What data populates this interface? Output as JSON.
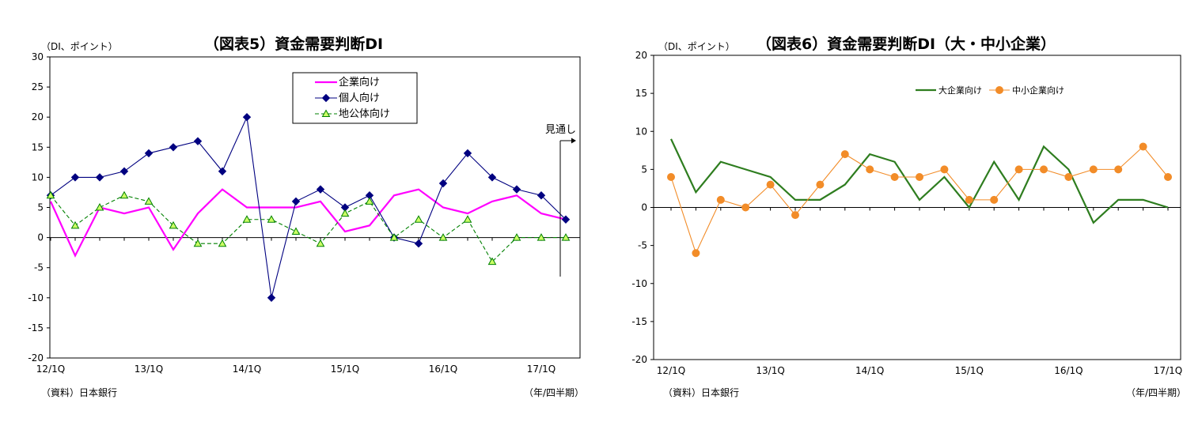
{
  "chart_data": [
    {
      "type": "line",
      "title": "（図表5）資金需要判断DI",
      "ylabel": "（DI、ポイント）",
      "source": "（資料）日本銀行",
      "period_label": "（年/四半期）",
      "annotation": "見通し",
      "ylim": [
        -20,
        30
      ],
      "yticks": [
        -20,
        -15,
        -10,
        -5,
        0,
        5,
        10,
        15,
        20,
        25,
        30
      ],
      "x_tick_labels": [
        "12/1Q",
        "13/1Q",
        "14/1Q",
        "15/1Q",
        "16/1Q",
        "17/1Q"
      ],
      "n_points": 22,
      "legend_position": "top-center",
      "series": [
        {
          "name": "企業向け",
          "color": "#ff00ff",
          "style": "solid",
          "marker": "none",
          "values": [
            6,
            -3,
            5,
            4,
            5,
            -2,
            4,
            8,
            5,
            5,
            5,
            6,
            1,
            2,
            7,
            8,
            5,
            4,
            6,
            7,
            4,
            3
          ]
        },
        {
          "name": "個人向け",
          "color": "#000080",
          "style": "solid",
          "marker": "diamond",
          "values": [
            7,
            10,
            10,
            11,
            14,
            15,
            16,
            11,
            20,
            -10,
            6,
            8,
            5,
            7,
            0,
            -1,
            9,
            14,
            10,
            8,
            7,
            3
          ]
        },
        {
          "name": "地公体向け",
          "color": "#008000",
          "style": "dashed",
          "marker": "triangle",
          "values": [
            7,
            2,
            5,
            7,
            6,
            2,
            -1,
            -1,
            3,
            3,
            1,
            -1,
            4,
            6,
            0,
            3,
            0,
            3,
            -4,
            0,
            0,
            0
          ]
        }
      ]
    },
    {
      "type": "line",
      "title": "（図表6）資金需要判断DI（大・中小企業）",
      "ylabel": "（DI、ポイント）",
      "source": "（資料）日本銀行",
      "period_label": "（年/四半期）",
      "ylim": [
        -20,
        20
      ],
      "yticks": [
        -20,
        -15,
        -10,
        -5,
        0,
        5,
        10,
        15,
        20
      ],
      "x_tick_labels": [
        "12/1Q",
        "13/1Q",
        "14/1Q",
        "15/1Q",
        "16/1Q",
        "17/1Q"
      ],
      "n_points": 21,
      "legend_position": "top-center",
      "series": [
        {
          "name": "大企業向け",
          "color": "#2e7d1f",
          "style": "solid",
          "marker": "none",
          "values": [
            9,
            2,
            6,
            5,
            4,
            1,
            1,
            3,
            7,
            6,
            1,
            4,
            0,
            6,
            1,
            8,
            5,
            -2,
            1,
            1,
            0
          ]
        },
        {
          "name": "中小企業向け",
          "color": "#f28c28",
          "style": "solid",
          "marker": "circle",
          "values": [
            4,
            -6,
            1,
            0,
            3,
            -1,
            3,
            7,
            5,
            4,
            4,
            5,
            1,
            1,
            5,
            5,
            4,
            5,
            5,
            8,
            4
          ]
        }
      ]
    }
  ]
}
